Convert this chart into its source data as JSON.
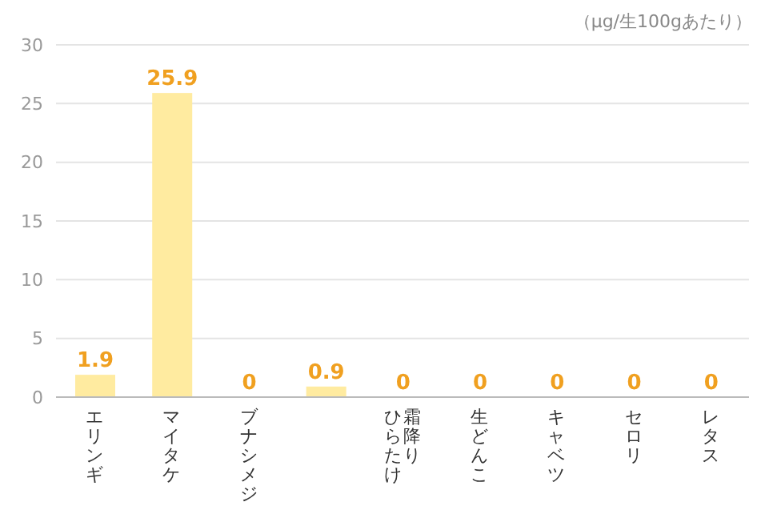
{
  "chart_data": {
    "type": "bar",
    "annotations": [
      "（μg/生100gあたり）"
    ],
    "categories": [
      "エリンギ",
      "マイタケ",
      "ブナシメジ",
      null,
      "霜降りひらたけ",
      "生どんこ",
      "キャベツ",
      "セロリ",
      "レタス"
    ],
    "values": [
      1.9,
      25.9,
      0,
      0.9,
      0,
      0,
      0,
      0,
      0
    ],
    "color": "#ffeba0",
    "data_labels": true,
    "ylim": [
      0,
      30
    ],
    "yticks": [
      0,
      5,
      10,
      15,
      20,
      25,
      30
    ],
    "grid": "y"
  }
}
